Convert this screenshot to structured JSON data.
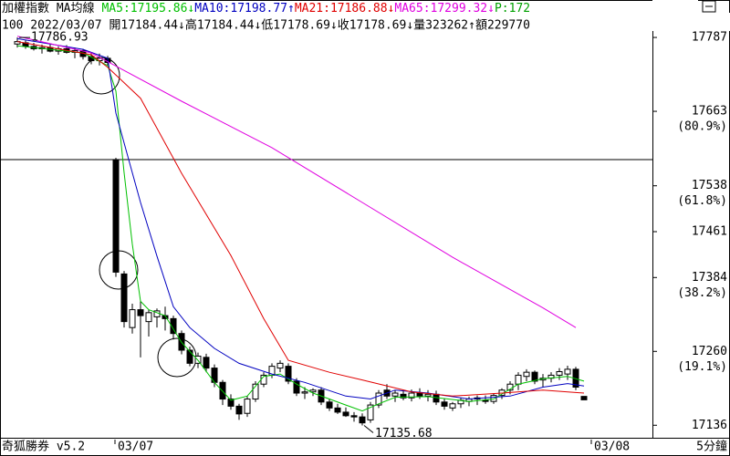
{
  "chart_data": {
    "type": "candlestick",
    "title": "加權指數 MA均線",
    "info": "100 2022/03/07 開17184.44↓高17184.44↓低17178.69↓收17178.69↓量323262↑額229770",
    "extra_indicator": {
      "text": "P:172",
      "color": "#00a000"
    },
    "brand": "奇狐勝券 v5.2",
    "period": "5分鐘",
    "categories": [
      null,
      null,
      null,
      null,
      null,
      null,
      null,
      null,
      null,
      null,
      null,
      null,
      "03/07",
      null,
      null,
      null,
      null,
      null,
      null,
      null,
      null,
      null,
      null,
      null,
      null,
      null,
      null,
      null,
      null,
      null,
      null,
      null,
      null,
      null,
      null,
      null,
      null,
      null,
      null,
      null,
      null,
      null,
      null,
      null,
      null,
      null,
      null,
      null,
      null,
      null,
      null,
      null,
      null,
      null,
      null,
      null,
      null,
      null,
      null,
      null,
      null,
      null,
      null,
      null,
      null,
      null,
      null,
      null,
      null,
      null,
      "03/08"
    ],
    "open": [
      17776,
      17778,
      17772,
      17768,
      17770,
      17764,
      17768,
      17762,
      17765,
      17755,
      17748,
      17752,
      17582,
      17390,
      17300,
      17330,
      17310,
      17318,
      17320,
      17315,
      17290,
      17262,
      17240,
      17250,
      17232,
      17208,
      17180,
      17168,
      17156,
      17180,
      17205,
      17220,
      17232,
      17235,
      17210,
      17190,
      17192,
      17195,
      17175,
      17165,
      17158,
      17152,
      17150,
      17145,
      17170,
      17195,
      17185,
      17188,
      17182,
      17190,
      17185,
      17188,
      17175,
      17165,
      17172,
      17176,
      17180,
      17178,
      17176,
      17186,
      17195,
      17205,
      17218,
      17225,
      17212,
      17215,
      17220,
      17222,
      17230,
      17184.44,
      null
    ],
    "high": [
      17786.93,
      17782,
      17778,
      17775,
      17776,
      17772,
      17774,
      17770,
      17768,
      17762,
      17760,
      17756,
      17585,
      17395,
      17340,
      17345,
      17330,
      17332,
      17335,
      17320,
      17295,
      17268,
      17258,
      17256,
      17238,
      17212,
      17188,
      17172,
      17185,
      17210,
      17225,
      17240,
      17245,
      17240,
      17215,
      17200,
      17198,
      17200,
      17180,
      17172,
      17166,
      17158,
      17156,
      17175,
      17195,
      17205,
      17195,
      17195,
      17196,
      17198,
      17195,
      17194,
      17180,
      17175,
      17182,
      17184,
      17186,
      17186,
      17190,
      17198,
      17210,
      17225,
      17230,
      17228,
      17222,
      17225,
      17232,
      17236,
      17234,
      17184.44,
      null
    ],
    "low": [
      17770,
      17768,
      17765,
      17760,
      17762,
      17758,
      17760,
      17752,
      17750,
      17742,
      17740,
      17740,
      17385,
      17300,
      17290,
      17250,
      17285,
      17300,
      17295,
      17280,
      17255,
      17235,
      17232,
      17225,
      17200,
      17170,
      17162,
      17145,
      17150,
      17175,
      17200,
      17215,
      17225,
      17205,
      17185,
      17180,
      17185,
      17170,
      17160,
      17155,
      17150,
      17142,
      17135.68,
      17140,
      17165,
      17180,
      17175,
      17178,
      17176,
      17180,
      17176,
      17170,
      17162,
      17160,
      17165,
      17168,
      17170,
      17172,
      17172,
      17180,
      17188,
      17195,
      17210,
      17205,
      17200,
      17208,
      17212,
      17212,
      17195,
      17178.69,
      null
    ],
    "close": [
      17780,
      17772,
      17768,
      17770,
      17764,
      17768,
      17762,
      17765,
      17755,
      17748,
      17752,
      17745,
      17393,
      17310,
      17330,
      17320,
      17325,
      17328,
      17315,
      17290,
      17262,
      17240,
      17252,
      17232,
      17208,
      17180,
      17168,
      17155,
      17180,
      17205,
      17220,
      17235,
      17240,
      17210,
      17190,
      17192,
      17195,
      17175,
      17165,
      17158,
      17152,
      17150,
      17140,
      17170,
      17190,
      17185,
      17190,
      17182,
      17190,
      17185,
      17188,
      17175,
      17168,
      17172,
      17178,
      17180,
      17182,
      17176,
      17186,
      17195,
      17205,
      17220,
      17225,
      17210,
      17215,
      17220,
      17226,
      17230,
      17200,
      17178.69,
      null
    ],
    "up_color": "#ffffff",
    "down_color": "#000000",
    "series": [
      {
        "legend": "MA5:17195.86↓",
        "color": "#00c000",
        "x": [
          0,
          8,
          11,
          12,
          13,
          14,
          15,
          16,
          18,
          20,
          22,
          24,
          26,
          28,
          30,
          32,
          34,
          36,
          38,
          40,
          42,
          44,
          46,
          50,
          55,
          58,
          61,
          64,
          67,
          69
        ],
        "values": [
          17773,
          17761,
          17740,
          17697,
          17560,
          17440,
          17344,
          17330,
          17320,
          17275,
          17245,
          17208,
          17178,
          17185,
          17218,
          17222,
          17205,
          17190,
          17180,
          17170,
          17160,
          17172,
          17183,
          17184,
          17176,
          17180,
          17205,
          17214,
          17218,
          17210
        ]
      },
      {
        "legend": "MA10:17198.77↑",
        "color": "#0000c0",
        "x": [
          0,
          8,
          11,
          12,
          13,
          15,
          17,
          19,
          21,
          24,
          27,
          31,
          35,
          40,
          43,
          46,
          50,
          55,
          60,
          64,
          67,
          69
        ],
        "values": [
          17785,
          17767,
          17752,
          17660,
          17610,
          17510,
          17420,
          17335,
          17300,
          17265,
          17240,
          17222,
          17208,
          17185,
          17180,
          17195,
          17190,
          17180,
          17185,
          17200,
          17206,
          17202
        ]
      },
      {
        "legend": "MA21:17186.88↓",
        "color": "#e00000",
        "x": [
          0,
          9,
          11,
          15,
          20,
          26,
          30,
          33,
          38,
          42,
          48,
          53,
          59,
          64,
          69
        ],
        "values": [
          17780,
          17758,
          17737,
          17685,
          17559,
          17421,
          17315,
          17245,
          17225,
          17212,
          17192,
          17185,
          17190,
          17195,
          17190
        ]
      },
      {
        "legend": "MA65:17299.32↓",
        "color": "#e000e0",
        "x": [
          0,
          9,
          20,
          31,
          42,
          53,
          64,
          68
        ],
        "values": [
          17789,
          17761,
          17680,
          17602,
          17510,
          17418,
          17333,
          17300
        ]
      }
    ],
    "ylim": [
      17115,
      17807
    ],
    "yticks": [
      17787,
      17663,
      17538,
      17461,
      17384,
      17260,
      17136
    ],
    "fib_levels": [
      {
        "value": 17663,
        "label": "(80.9%)"
      },
      {
        "value": 17538,
        "label": "(61.8%)"
      },
      {
        "value": 17384,
        "label": "(38.2%)"
      },
      {
        "value": 17260,
        "label": "(19.1%)"
      }
    ],
    "ref_line": 17582
  }
}
